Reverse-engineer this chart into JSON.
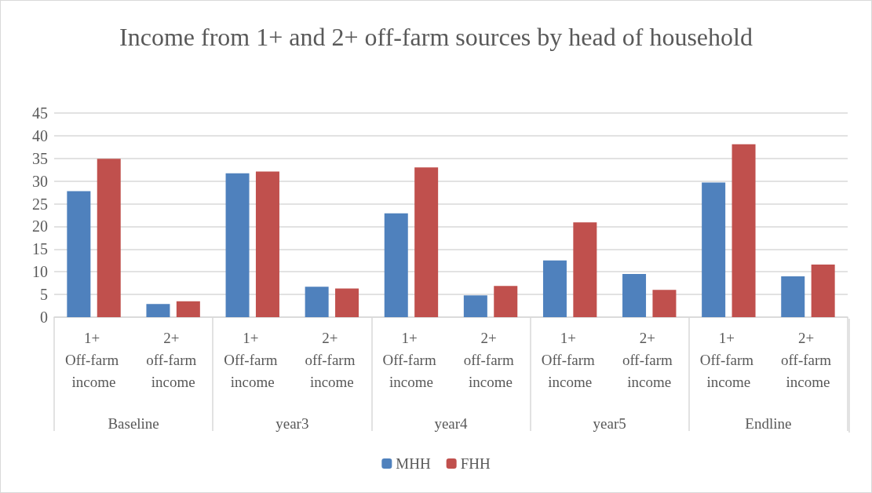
{
  "chart_data": {
    "type": "bar",
    "title": "Income from 1+ and 2+ off-farm sources by head of household",
    "categories": [
      "1+ Off-farm income",
      "2+ off-farm income",
      "1+ Off-farm income",
      "2+ off-farm income",
      "1+ Off-farm income",
      "2+ off-farm income",
      "1+ Off-farm income",
      "2+ off-farm income",
      "1+ Off-farm income",
      "2+ off-farm income"
    ],
    "annotations": [
      "Baseline",
      "year3",
      "year4",
      "year5",
      "Endline"
    ],
    "series": [
      {
        "name": "MHH",
        "color": "#4f81bd",
        "values": [
          27.8,
          2.9,
          31.7,
          6.7,
          22.9,
          4.8,
          12.5,
          9.5,
          29.7,
          9.0
        ]
      },
      {
        "name": "FHH",
        "color": "#c0504d",
        "values": [
          34.9,
          3.5,
          32.1,
          6.3,
          33.0,
          6.9,
          20.9,
          6.0,
          38.1,
          11.6
        ]
      }
    ],
    "ylim": [
      0,
      45
    ],
    "yticks": [
      0,
      5,
      10,
      15,
      20,
      25,
      30,
      35,
      40,
      45
    ],
    "grid": "y",
    "legend": "bottom"
  }
}
